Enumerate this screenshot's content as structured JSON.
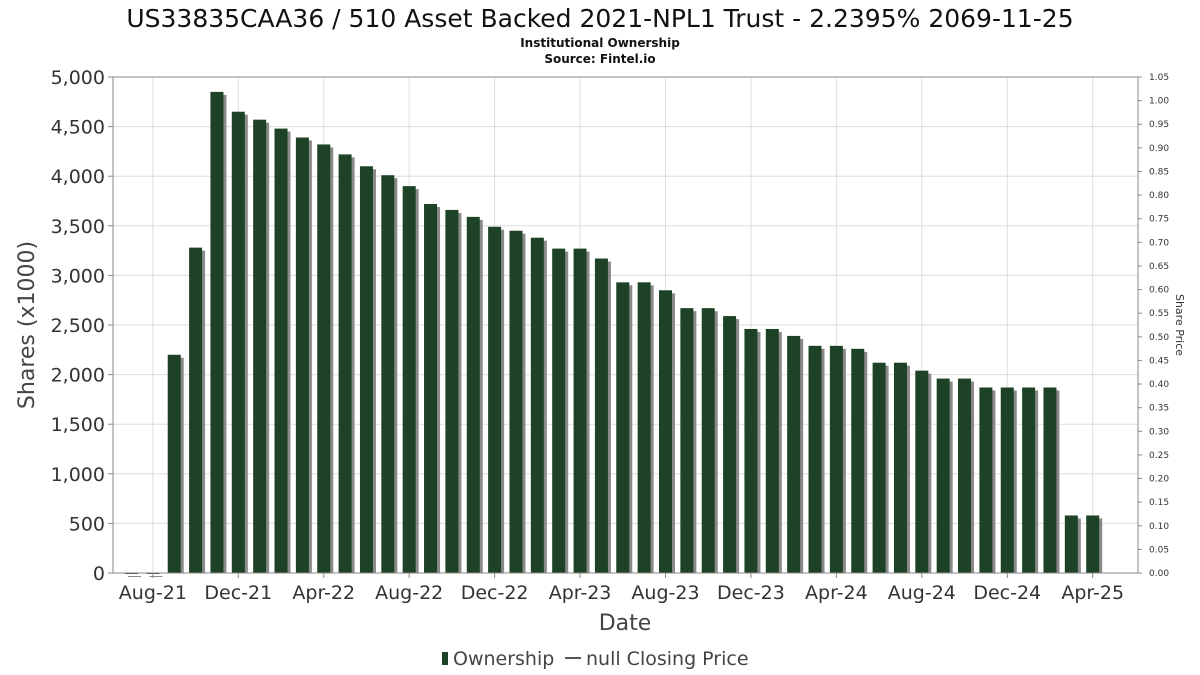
{
  "chart_data": {
    "type": "bar",
    "title": "US33835CAA36 / 510 Asset Backed 2021-NPL1 Trust - 2.2395% 2069-11-25",
    "subtitle_lines": [
      "Institutional Ownership",
      "Source: Fintel.io"
    ],
    "xlabel": "Date",
    "ylabel": "Shares (x1000)",
    "y2label": "Share Price",
    "ylim": [
      0,
      5000
    ],
    "y2lim": [
      0,
      1.05
    ],
    "yticks": [
      "0",
      "500",
      "1,000",
      "1,500",
      "2,000",
      "2,500",
      "3,000",
      "3,500",
      "4,000",
      "4,500",
      "5,000"
    ],
    "y2ticks": [
      "0.00",
      "0.05",
      "0.10",
      "0.15",
      "0.20",
      "0.25",
      "0.30",
      "0.35",
      "0.40",
      "0.45",
      "0.50",
      "0.55",
      "0.60",
      "0.65",
      "0.70",
      "0.75",
      "0.80",
      "0.85",
      "0.90",
      "0.95",
      "1.00",
      "1.05"
    ],
    "xticks": [
      "Aug-21",
      "Dec-21",
      "Apr-22",
      "Aug-22",
      "Dec-22",
      "Apr-23",
      "Aug-23",
      "Dec-23",
      "Apr-24",
      "Aug-24",
      "Dec-24",
      "Apr-25"
    ],
    "grid": true,
    "legend_position": "bottom",
    "series": [
      {
        "name": "Ownership",
        "color": "#1e4226",
        "values": [
          0,
          0,
          2200,
          3280,
          4850,
          4650,
          4570,
          4480,
          4390,
          4320,
          4220,
          4100,
          4010,
          3900,
          3720,
          3660,
          3590,
          3490,
          3450,
          3380,
          3270,
          3270,
          3170,
          2930,
          2930,
          2850,
          2670,
          2670,
          2590,
          2460,
          2460,
          2390,
          2290,
          2290,
          2260,
          2120,
          2120,
          2040,
          1960,
          1960,
          1870,
          1870,
          1870,
          1870,
          580,
          580
        ]
      },
      {
        "name": "null Closing Price",
        "color": "#555555",
        "values": []
      }
    ]
  }
}
